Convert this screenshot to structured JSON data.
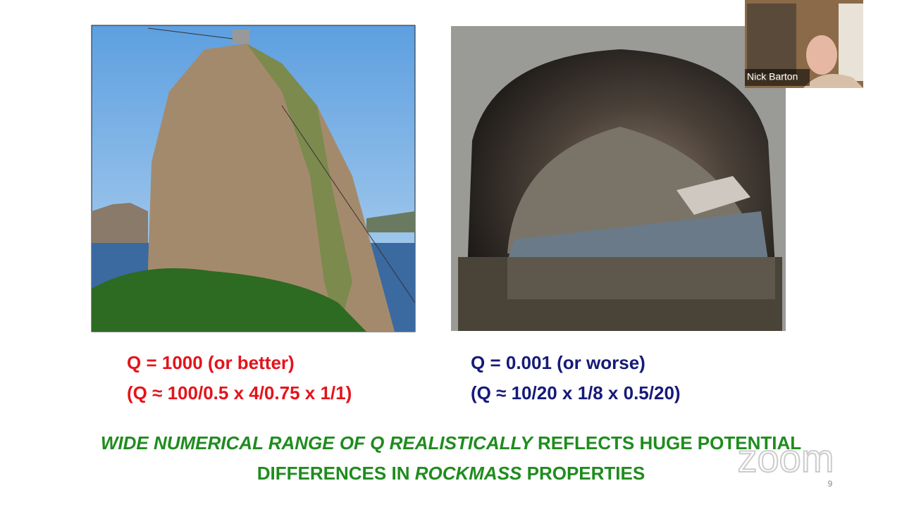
{
  "slide": {
    "left_caption": [
      "Q = 1000 (or better)",
      "(Q ≈ 100/0.5 x 4/0.75 x 1/1)"
    ],
    "right_caption": [
      "Q = 0.001 (or worse)",
      "(Q ≈ 10/20 x 1/8 x 0.5/20)"
    ],
    "conclusion": [
      [
        {
          "text": "WIDE NUMERICAL RANGE OF Q REALISTICALLY",
          "italic": true
        },
        {
          "text": " REFLECTS HUGE POTENTIAL",
          "italic": false
        }
      ],
      [
        {
          "text": "DIFFERENCES IN ",
          "italic": false
        },
        {
          "text": "ROCKMASS",
          "italic": true
        },
        {
          "text": " PROPERTIES",
          "italic": false
        }
      ]
    ],
    "page_number": 9
  },
  "video": {
    "participant_name": "Nick Barton",
    "watermark": "zoom"
  }
}
